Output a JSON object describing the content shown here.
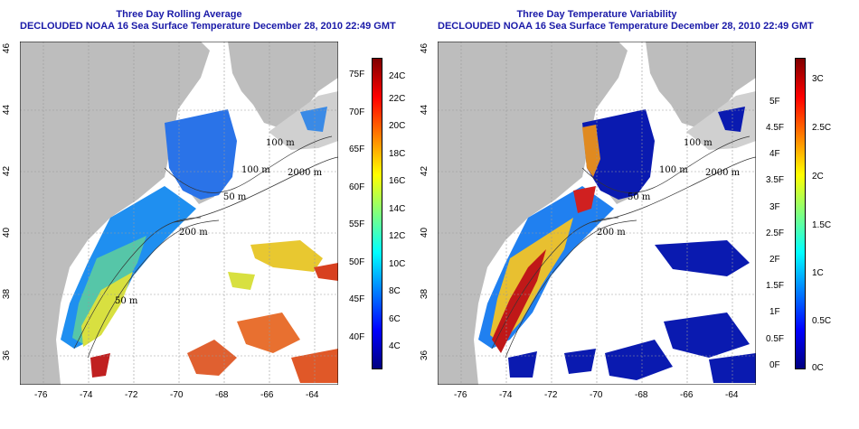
{
  "left_panel": {
    "title_line1": "Three Day Rolling Average",
    "title_line2": "DECLOUDED NOAA 16 Sea Surface Temperature December 28, 2010 22:49 GMT",
    "x_ticks": [
      "-76",
      "-74",
      "-72",
      "-70",
      "-68",
      "-66",
      "-64"
    ],
    "y_ticks": [
      "36",
      "38",
      "40",
      "42",
      "44",
      "46"
    ],
    "contour_labels": [
      "100 m",
      "2000 m",
      "100 m",
      "200 m",
      "50 m",
      "50 m"
    ],
    "colorbar": {
      "c_labels": [
        "24C",
        "22C",
        "20C",
        "18C",
        "16C",
        "14C",
        "12C",
        "10C",
        "8C",
        "6C",
        "4C"
      ],
      "f_labels": [
        "75F",
        "70F",
        "65F",
        "60F",
        "55F",
        "50F",
        "45F",
        "40F"
      ]
    }
  },
  "right_panel": {
    "title_line1": "Three Day Temperature Variability",
    "title_line2": "DECLOUDED NOAA 16 Sea Surface Temperature December 28, 2010 22:49 GMT",
    "x_ticks": [
      "-76",
      "-74",
      "-72",
      "-70",
      "-68",
      "-66",
      "-64"
    ],
    "y_ticks": [
      "36",
      "38",
      "40",
      "42",
      "44",
      "46"
    ],
    "contour_labels": [
      "100 m",
      "2000 m",
      "100 m",
      "200 m",
      "50 m"
    ],
    "colorbar": {
      "c_labels": [
        "3C",
        "2.5C",
        "2C",
        "1.5C",
        "1C",
        "0.5C",
        "0C"
      ],
      "f_labels": [
        "5F",
        "4.5F",
        "4F",
        "3.5F",
        "3F",
        "2.5F",
        "2F",
        "1.5F",
        "1F",
        "0.5F",
        "0F"
      ]
    }
  },
  "colors": {
    "land": "#bdbdbd",
    "water": "#ffffff",
    "title": "#1a1aa8"
  }
}
